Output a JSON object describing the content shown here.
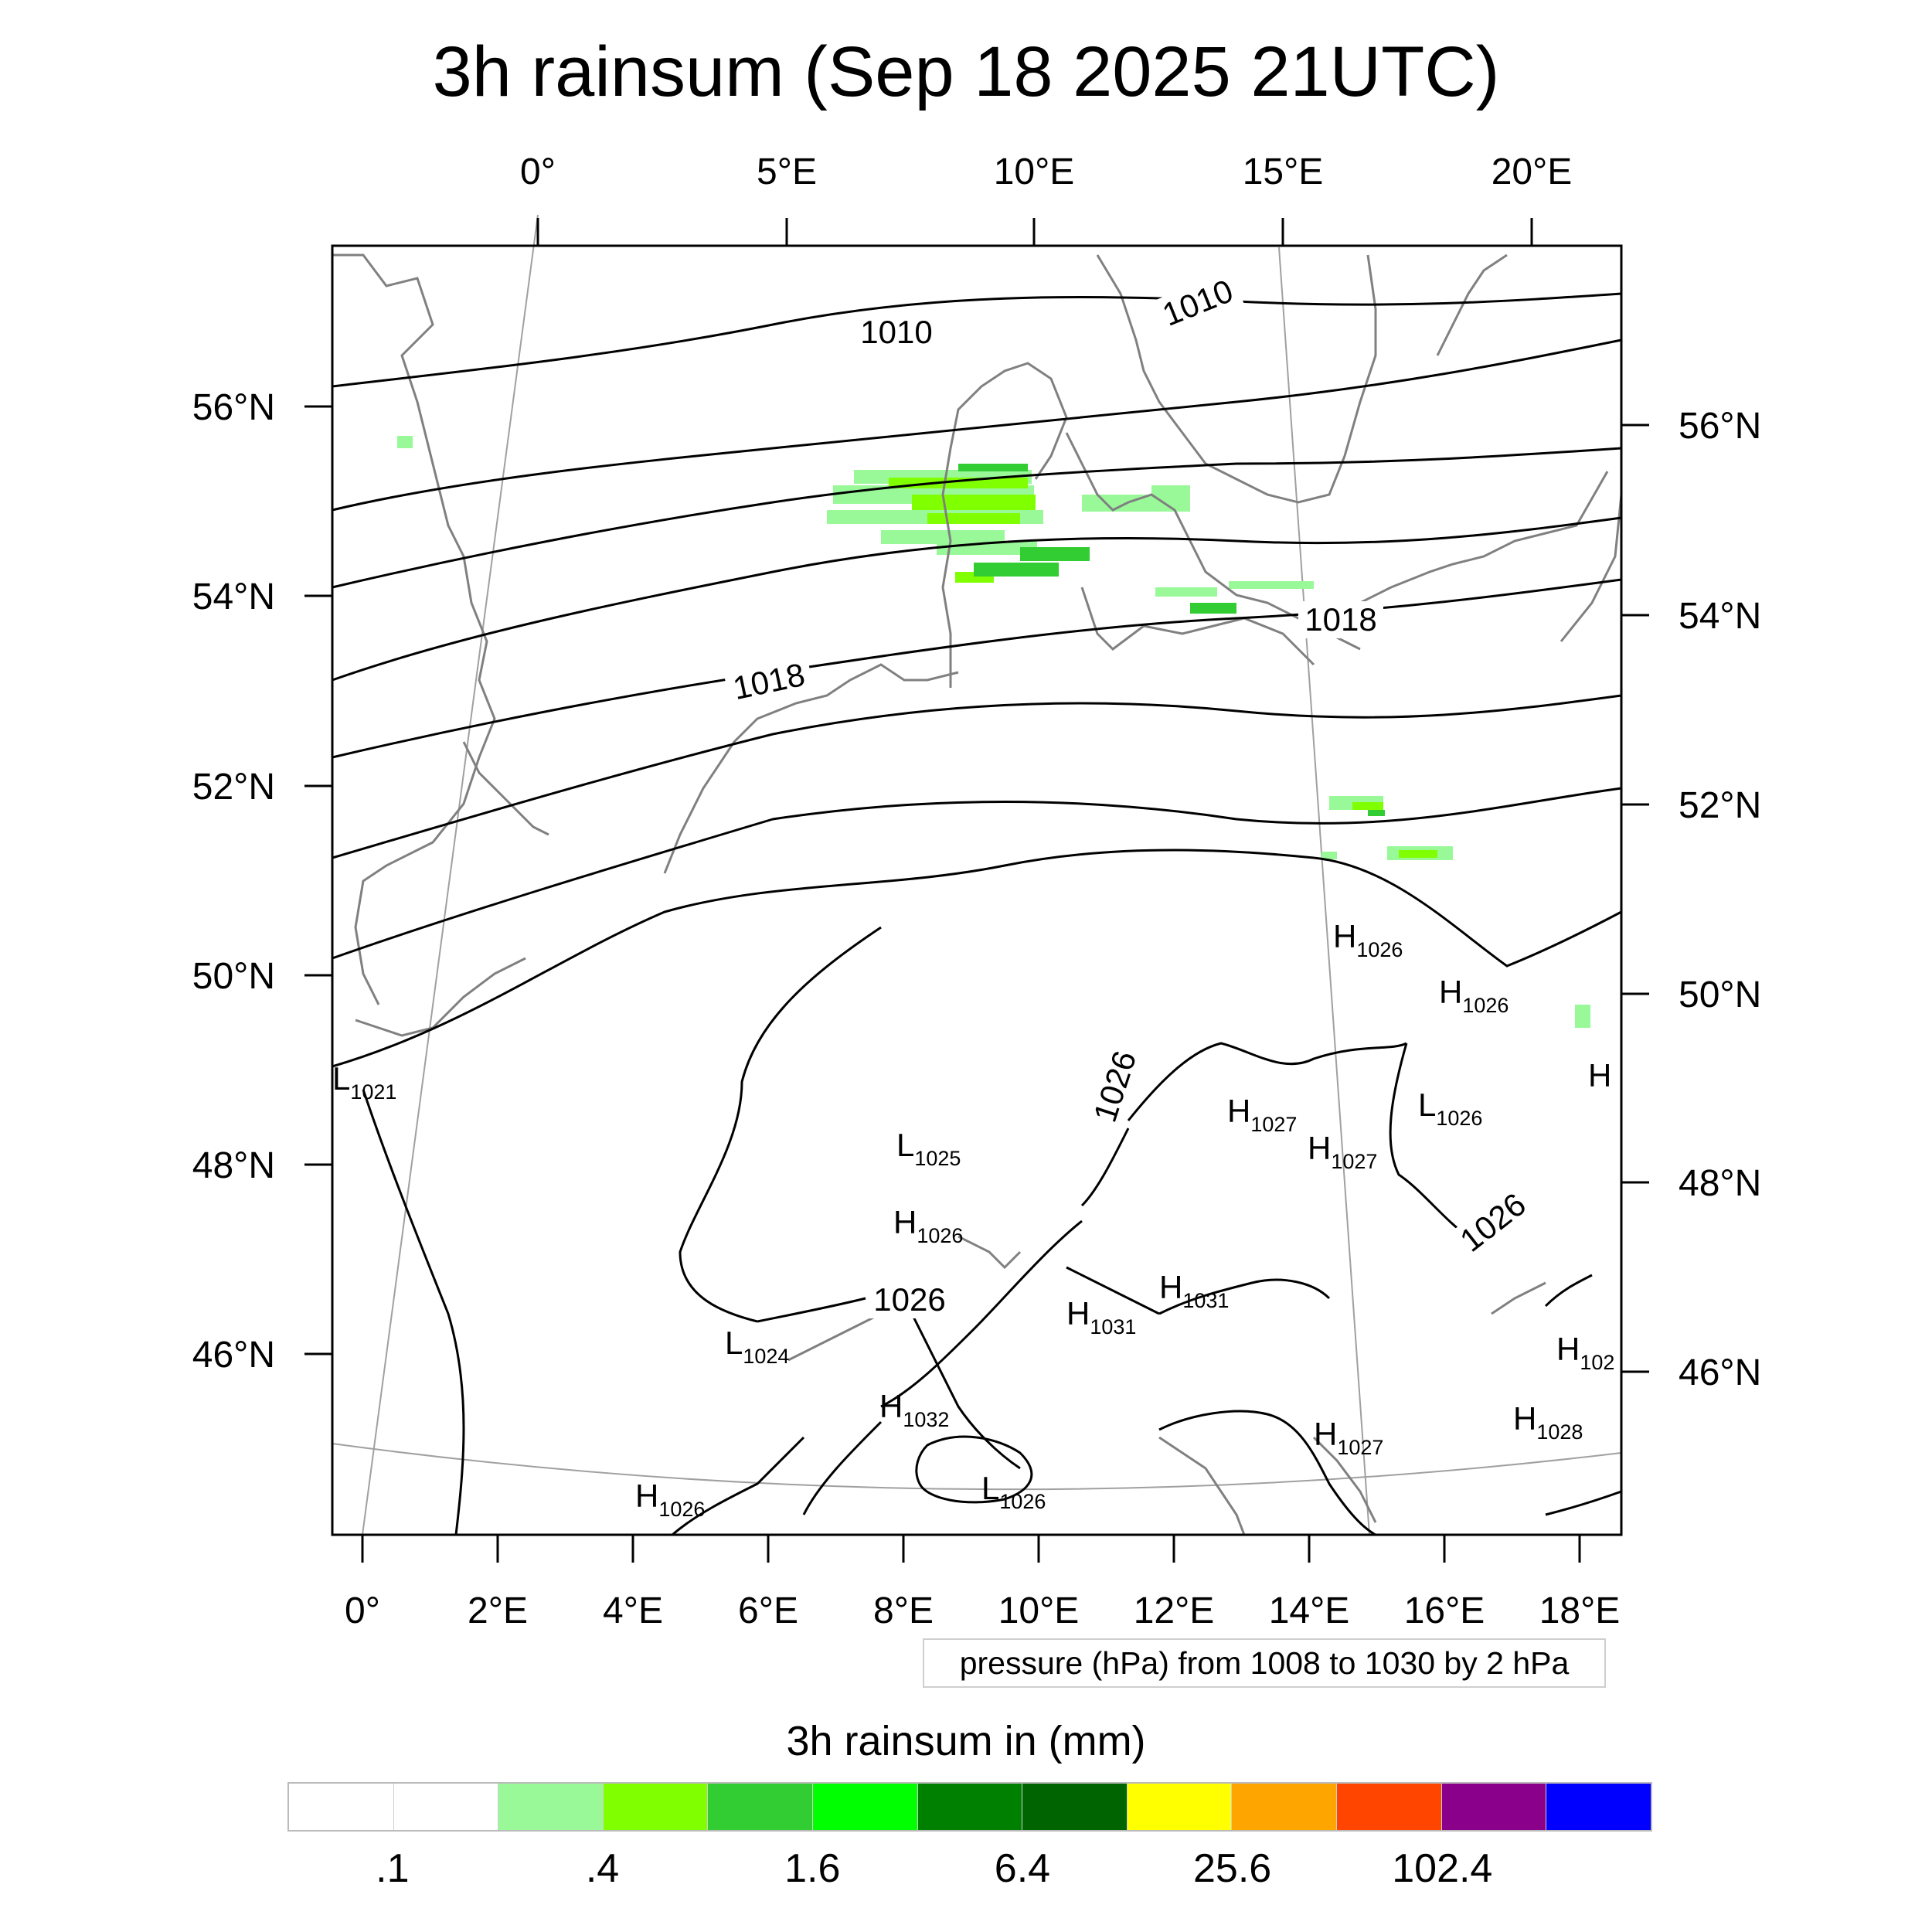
{
  "title": "3h rainsum (Sep 18 2025 21UTC)",
  "map": {
    "top_lon_labels": [
      "0°",
      "5°E",
      "10°E",
      "15°E",
      "20°E"
    ],
    "bottom_lon_labels": [
      "0°",
      "2°E",
      "4°E",
      "6°E",
      "8°E",
      "10°E",
      "12°E",
      "14°E",
      "16°E",
      "18°E"
    ],
    "left_lat_labels": [
      "56°N",
      "54°N",
      "52°N",
      "50°N",
      "48°N",
      "46°N"
    ],
    "right_lat_labels": [
      "56°N",
      "54°N",
      "52°N",
      "50°N",
      "48°N",
      "46°N"
    ],
    "isobar_labels": [
      "1010",
      "1010",
      "1018",
      "1018",
      "1026",
      "1026",
      "1026"
    ],
    "pressure_centers": [
      {
        "type": "L",
        "value": "1021"
      },
      {
        "type": "H",
        "value": "1026"
      },
      {
        "type": "H",
        "value": "1026"
      },
      {
        "type": "H",
        "value": ""
      },
      {
        "type": "H",
        "value": "1027"
      },
      {
        "type": "H",
        "value": "1027"
      },
      {
        "type": "L",
        "value": "1026"
      },
      {
        "type": "L",
        "value": "1025"
      },
      {
        "type": "H",
        "value": "1026"
      },
      {
        "type": "H",
        "value": "1031"
      },
      {
        "type": "H",
        "value": "1031"
      },
      {
        "type": "L",
        "value": "1024"
      },
      {
        "type": "H",
        "value": "1032"
      },
      {
        "type": "H",
        "value": "1027"
      },
      {
        "type": "H",
        "value": "102"
      },
      {
        "type": "H",
        "value": "1028"
      },
      {
        "type": "H",
        "value": "1026"
      },
      {
        "type": "L",
        "value": "1026"
      }
    ],
    "colors": {
      "isobar": "#000000",
      "coastline": "#808080",
      "graticule": "#a0a0a0"
    }
  },
  "contour_info": "pressure (hPa) from 1008 to 1030 by 2 hPa",
  "colorbar": {
    "title": "3h rainsum in (mm)",
    "colors": [
      "#ffffff",
      "#ffffff",
      "#99f999",
      "#7fff00",
      "#32cd32",
      "#00ff00",
      "#008000",
      "#006400",
      "#ffff00",
      "#ffa500",
      "#ff4500",
      "#8b008b",
      "#0000ff"
    ],
    "labels": [
      ".1",
      ".4",
      "1.6",
      "6.4",
      "25.6",
      "102.4"
    ]
  }
}
